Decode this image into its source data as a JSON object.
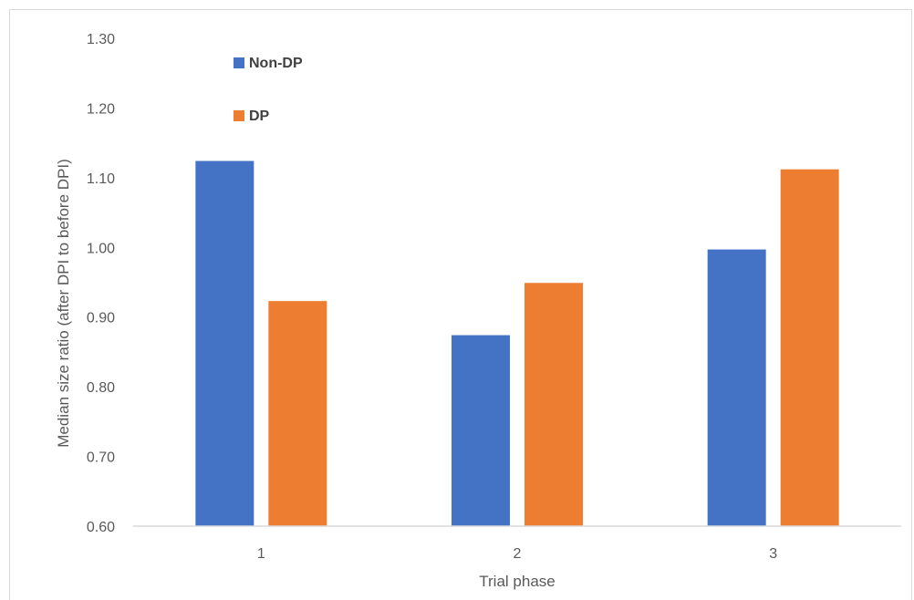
{
  "chart_data": {
    "type": "bar",
    "title": "",
    "xlabel": "Trial phase",
    "ylabel": "Median size ratio (after DPI to before DPI)",
    "categories": [
      "1",
      "2",
      "3"
    ],
    "ylim": [
      0.6,
      1.3
    ],
    "yticks": [
      0.6,
      0.7,
      0.8,
      0.9,
      1.0,
      1.1,
      1.2,
      1.3
    ],
    "ytick_labels": [
      "0.60",
      "0.70",
      "0.80",
      "0.90",
      "1.00",
      "1.10",
      "1.20",
      "1.30"
    ],
    "grid": false,
    "legend_position": "top-left",
    "series": [
      {
        "name": "Non-DP",
        "color": "#4472C4",
        "values": [
          1.124,
          0.874,
          0.997
        ]
      },
      {
        "name": "DP",
        "color": "#ED7D31",
        "values": [
          0.923,
          0.949,
          1.112
        ]
      }
    ]
  }
}
